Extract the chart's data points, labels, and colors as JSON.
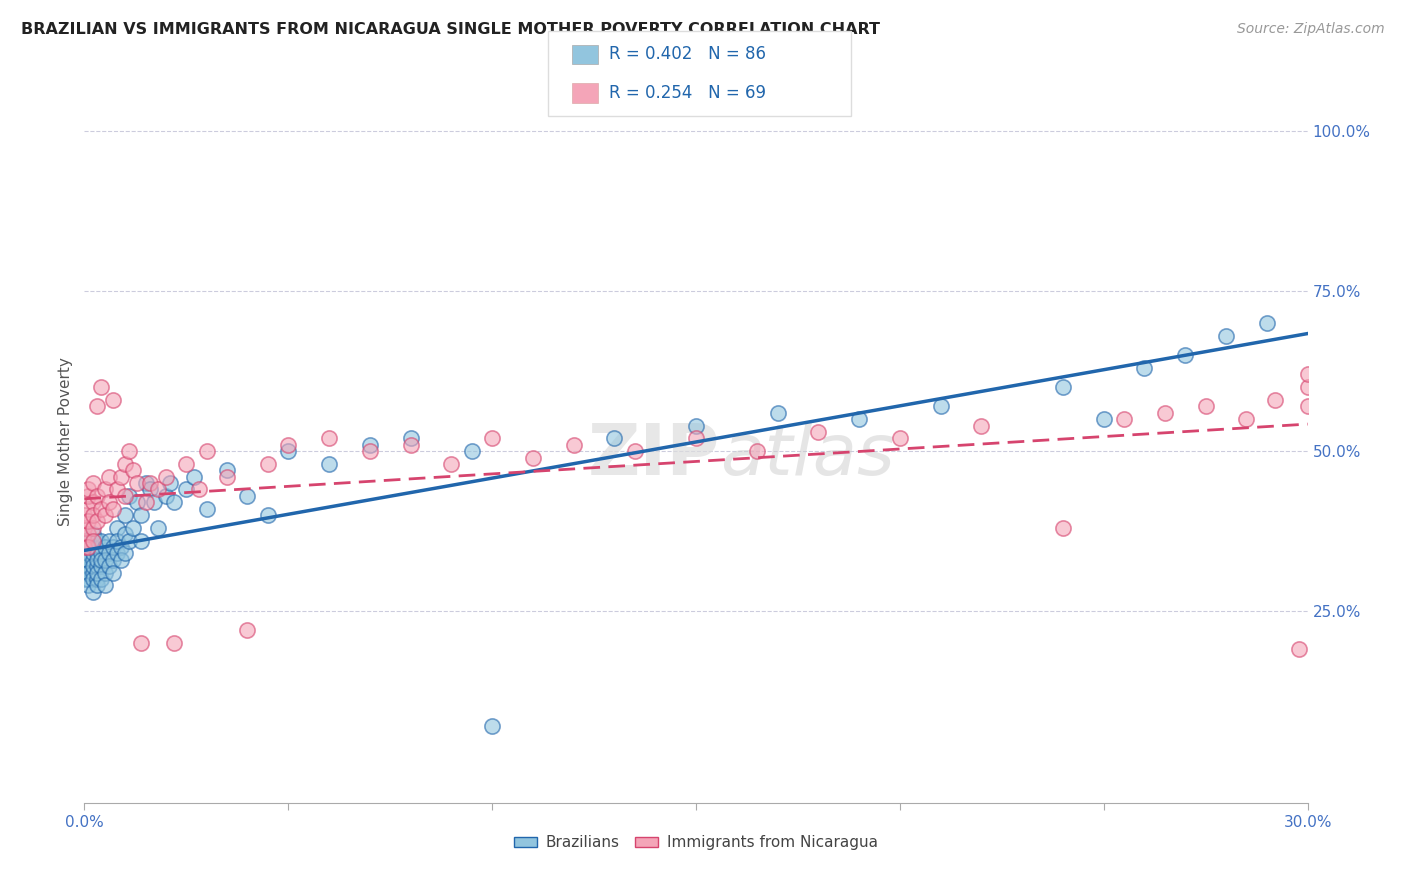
{
  "title": "BRAZILIAN VS IMMIGRANTS FROM NICARAGUA SINGLE MOTHER POVERTY CORRELATION CHART",
  "source": "Source: ZipAtlas.com",
  "ylabel": "Single Mother Poverty",
  "legend_series1_label": "Brazilians",
  "legend_series2_label": "Immigrants from Nicaragua",
  "r1": 0.402,
  "n1": 86,
  "r2": 0.254,
  "n2": 69,
  "color_blue": "#92c5de",
  "color_pink": "#f4a5b8",
  "color_blue_line": "#2166ac",
  "color_pink_line": "#d6446e",
  "color_blue_text": "#2166ac",
  "watermark_text": "ZIPatlas",
  "xmin": 0.0,
  "xmax": 0.3,
  "ymin": -0.05,
  "ymax": 1.08,
  "ytick_vals": [
    0.25,
    0.5,
    0.75,
    1.0
  ],
  "brazil_x": [
    0.0,
    0.0,
    0.0,
    0.0,
    0.001,
    0.001,
    0.001,
    0.001,
    0.001,
    0.001,
    0.001,
    0.001,
    0.002,
    0.002,
    0.002,
    0.002,
    0.002,
    0.002,
    0.002,
    0.002,
    0.003,
    0.003,
    0.003,
    0.003,
    0.003,
    0.003,
    0.003,
    0.004,
    0.004,
    0.004,
    0.004,
    0.004,
    0.005,
    0.005,
    0.005,
    0.005,
    0.006,
    0.006,
    0.006,
    0.007,
    0.007,
    0.007,
    0.008,
    0.008,
    0.008,
    0.009,
    0.009,
    0.01,
    0.01,
    0.01,
    0.011,
    0.011,
    0.012,
    0.013,
    0.014,
    0.014,
    0.015,
    0.016,
    0.017,
    0.018,
    0.02,
    0.021,
    0.022,
    0.025,
    0.027,
    0.03,
    0.035,
    0.04,
    0.045,
    0.05,
    0.06,
    0.07,
    0.08,
    0.095,
    0.1,
    0.13,
    0.15,
    0.17,
    0.19,
    0.21,
    0.24,
    0.25,
    0.26,
    0.27,
    0.28,
    0.29
  ],
  "brazil_y": [
    0.31,
    0.32,
    0.3,
    0.33,
    0.32,
    0.34,
    0.3,
    0.33,
    0.31,
    0.35,
    0.29,
    0.36,
    0.31,
    0.33,
    0.3,
    0.34,
    0.32,
    0.35,
    0.28,
    0.37,
    0.32,
    0.3,
    0.34,
    0.36,
    0.29,
    0.33,
    0.31,
    0.34,
    0.32,
    0.3,
    0.36,
    0.33,
    0.31,
    0.35,
    0.29,
    0.33,
    0.34,
    0.32,
    0.36,
    0.33,
    0.35,
    0.31,
    0.38,
    0.34,
    0.36,
    0.35,
    0.33,
    0.37,
    0.34,
    0.4,
    0.36,
    0.43,
    0.38,
    0.42,
    0.4,
    0.36,
    0.45,
    0.44,
    0.42,
    0.38,
    0.43,
    0.45,
    0.42,
    0.44,
    0.46,
    0.41,
    0.47,
    0.43,
    0.4,
    0.5,
    0.48,
    0.51,
    0.52,
    0.5,
    0.07,
    0.52,
    0.54,
    0.56,
    0.55,
    0.57,
    0.6,
    0.55,
    0.63,
    0.65,
    0.68,
    0.7
  ],
  "nicaragua_x": [
    0.0,
    0.0,
    0.0,
    0.0,
    0.001,
    0.001,
    0.001,
    0.001,
    0.001,
    0.001,
    0.002,
    0.002,
    0.002,
    0.002,
    0.002,
    0.003,
    0.003,
    0.003,
    0.004,
    0.004,
    0.005,
    0.005,
    0.006,
    0.006,
    0.007,
    0.007,
    0.008,
    0.009,
    0.01,
    0.01,
    0.011,
    0.012,
    0.013,
    0.014,
    0.015,
    0.016,
    0.018,
    0.02,
    0.022,
    0.025,
    0.028,
    0.03,
    0.035,
    0.04,
    0.045,
    0.05,
    0.06,
    0.07,
    0.08,
    0.09,
    0.1,
    0.11,
    0.12,
    0.135,
    0.15,
    0.165,
    0.18,
    0.2,
    0.22,
    0.24,
    0.255,
    0.265,
    0.275,
    0.285,
    0.292,
    0.298,
    0.3,
    0.3,
    0.3
  ],
  "nicaragua_y": [
    0.36,
    0.38,
    0.35,
    0.4,
    0.37,
    0.41,
    0.39,
    0.43,
    0.35,
    0.44,
    0.38,
    0.42,
    0.36,
    0.45,
    0.4,
    0.39,
    0.43,
    0.57,
    0.41,
    0.6,
    0.4,
    0.44,
    0.42,
    0.46,
    0.58,
    0.41,
    0.44,
    0.46,
    0.43,
    0.48,
    0.5,
    0.47,
    0.45,
    0.2,
    0.42,
    0.45,
    0.44,
    0.46,
    0.2,
    0.48,
    0.44,
    0.5,
    0.46,
    0.22,
    0.48,
    0.51,
    0.52,
    0.5,
    0.51,
    0.48,
    0.52,
    0.49,
    0.51,
    0.5,
    0.52,
    0.5,
    0.53,
    0.52,
    0.54,
    0.38,
    0.55,
    0.56,
    0.57,
    0.55,
    0.58,
    0.19,
    0.57,
    0.6,
    0.62
  ]
}
